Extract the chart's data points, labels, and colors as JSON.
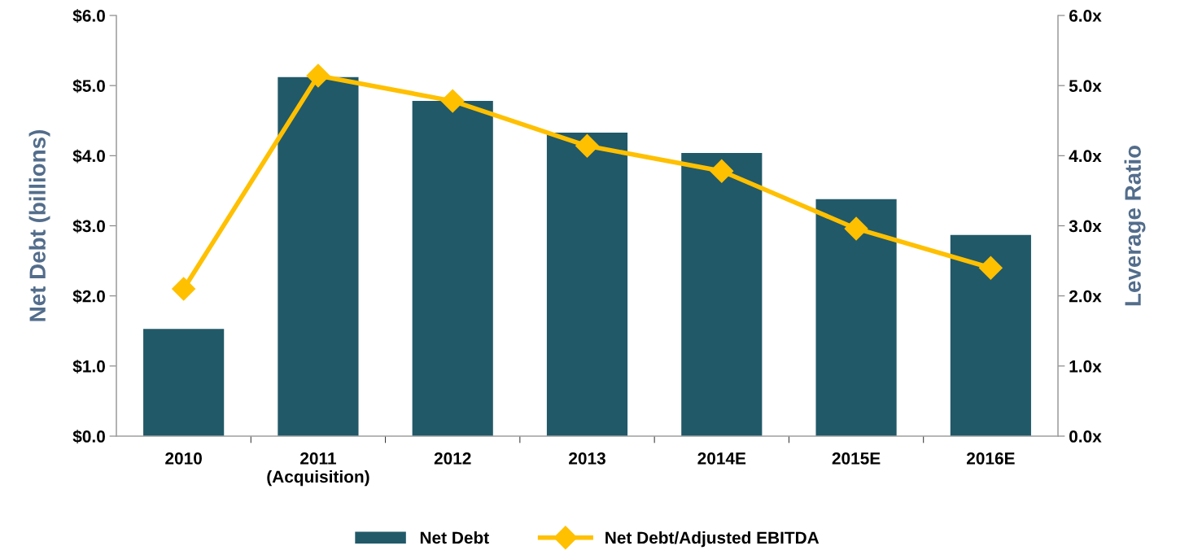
{
  "chart_data": {
    "type": "bar",
    "categories": [
      "2010",
      "2011\n(Acquisition)",
      "2012",
      "2013",
      "2014E",
      "2015E",
      "2016E"
    ],
    "ylabel": "Net Debt (billions)",
    "y2label": "Leverage Ratio",
    "series": [
      {
        "name": "Net Debt",
        "color": "#215968",
        "values": [
          1.53,
          5.12,
          4.78,
          4.33,
          4.04,
          3.38,
          2.87
        ]
      },
      {
        "name": "Net Debt/Adjusted EBITDA",
        "type": "line",
        "axis": "y2",
        "color": "#ffc000",
        "marker": "diamond",
        "values": [
          2.1,
          5.14,
          4.78,
          4.14,
          3.78,
          2.96,
          2.4
        ]
      }
    ],
    "ylim": [
      0,
      6
    ],
    "yticks": [
      {
        "value": 0,
        "label": "$0.0"
      },
      {
        "value": 1,
        "label": "$1.0"
      },
      {
        "value": 2,
        "label": "$2.0"
      },
      {
        "value": 3,
        "label": "$3.0"
      },
      {
        "value": 4,
        "label": "$4.0"
      },
      {
        "value": 5,
        "label": "$5.0"
      },
      {
        "value": 6,
        "label": "$6.0"
      }
    ],
    "y2lim": [
      0,
      6
    ],
    "y2ticks": [
      {
        "value": 0,
        "label": "0.0x"
      },
      {
        "value": 1,
        "label": "1.0x"
      },
      {
        "value": 2,
        "label": "2.0x"
      },
      {
        "value": 3,
        "label": "3.0x"
      },
      {
        "value": 4,
        "label": "4.0x"
      },
      {
        "value": 5,
        "label": "5.0x"
      },
      {
        "value": 6,
        "label": "6.0x"
      }
    ],
    "grid": false,
    "legend": "bottom"
  }
}
